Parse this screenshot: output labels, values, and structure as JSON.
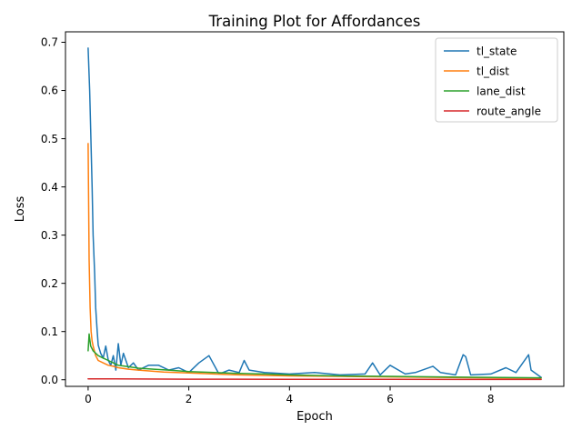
{
  "chart_data": {
    "type": "line",
    "title": "Training Plot for Affordances",
    "xlabel": "Epoch",
    "ylabel": "Loss",
    "xlim": [
      -0.45,
      9.45
    ],
    "ylim": [
      -0.0137,
      0.7217
    ],
    "xticks": [
      0,
      2,
      4,
      6,
      8
    ],
    "xtick_labels": [
      "0",
      "2",
      "4",
      "6",
      "8"
    ],
    "yticks": [
      0.0,
      0.1,
      0.2,
      0.3,
      0.4,
      0.5,
      0.6,
      0.7
    ],
    "ytick_labels": [
      "0.0",
      "0.1",
      "0.2",
      "0.3",
      "0.4",
      "0.5",
      "0.6",
      "0.7"
    ],
    "grid": false,
    "legend_position": "top-right",
    "series": [
      {
        "name": "tl_state",
        "color": "#1f77b4",
        "x": [
          0.0,
          0.03,
          0.05,
          0.08,
          0.1,
          0.13,
          0.15,
          0.18,
          0.2,
          0.25,
          0.3,
          0.35,
          0.4,
          0.45,
          0.5,
          0.55,
          0.6,
          0.65,
          0.7,
          0.8,
          0.9,
          1.0,
          1.2,
          1.4,
          1.6,
          1.8,
          2.0,
          2.2,
          2.4,
          2.6,
          2.8,
          3.0,
          3.1,
          3.2,
          3.5,
          4.0,
          4.5,
          5.0,
          5.5,
          5.65,
          5.8,
          6.0,
          6.3,
          6.5,
          6.85,
          7.0,
          7.3,
          7.45,
          7.5,
          7.6,
          8.0,
          8.3,
          8.5,
          8.75,
          8.8,
          9.0
        ],
        "y": [
          0.688,
          0.6,
          0.52,
          0.4,
          0.3,
          0.22,
          0.15,
          0.1,
          0.072,
          0.055,
          0.045,
          0.07,
          0.04,
          0.03,
          0.05,
          0.02,
          0.075,
          0.03,
          0.055,
          0.025,
          0.035,
          0.02,
          0.03,
          0.03,
          0.02,
          0.025,
          0.015,
          0.035,
          0.05,
          0.012,
          0.02,
          0.015,
          0.04,
          0.02,
          0.015,
          0.012,
          0.015,
          0.01,
          0.012,
          0.035,
          0.01,
          0.03,
          0.012,
          0.015,
          0.028,
          0.015,
          0.01,
          0.052,
          0.048,
          0.01,
          0.012,
          0.025,
          0.015,
          0.052,
          0.02,
          0.005
        ]
      },
      {
        "name": "tl_dist",
        "color": "#ff7f0e",
        "x": [
          0.0,
          0.02,
          0.04,
          0.06,
          0.08,
          0.1,
          0.15,
          0.2,
          0.3,
          0.4,
          0.5,
          0.6,
          0.8,
          1.0,
          1.5,
          2.0,
          2.5,
          3.0,
          4.0,
          5.0,
          6.0,
          7.0,
          8.0,
          9.0
        ],
        "y": [
          0.49,
          0.25,
          0.15,
          0.1,
          0.08,
          0.07,
          0.05,
          0.04,
          0.035,
          0.03,
          0.028,
          0.025,
          0.022,
          0.02,
          0.016,
          0.014,
          0.012,
          0.01,
          0.008,
          0.007,
          0.006,
          0.005,
          0.004,
          0.003
        ]
      },
      {
        "name": "lane_dist",
        "color": "#2ca02c",
        "x": [
          0.0,
          0.02,
          0.05,
          0.1,
          0.15,
          0.2,
          0.3,
          0.4,
          0.5,
          0.6,
          0.8,
          1.0,
          1.3,
          1.6,
          2.0,
          2.5,
          3.0,
          3.5,
          4.0,
          4.5,
          5.0,
          6.0,
          7.0,
          8.0,
          9.0
        ],
        "y": [
          0.06,
          0.095,
          0.07,
          0.06,
          0.055,
          0.05,
          0.045,
          0.04,
          0.035,
          0.03,
          0.027,
          0.024,
          0.022,
          0.02,
          0.017,
          0.015,
          0.013,
          0.012,
          0.01,
          0.009,
          0.008,
          0.007,
          0.006,
          0.005,
          0.004
        ]
      },
      {
        "name": "route_angle",
        "color": "#d62728",
        "x": [
          0.0,
          0.5,
          1.0,
          2.0,
          4.0,
          6.0,
          8.0,
          9.0
        ],
        "y": [
          0.002,
          0.0018,
          0.0015,
          0.0012,
          0.001,
          0.0008,
          0.0007,
          0.0006
        ]
      }
    ]
  }
}
